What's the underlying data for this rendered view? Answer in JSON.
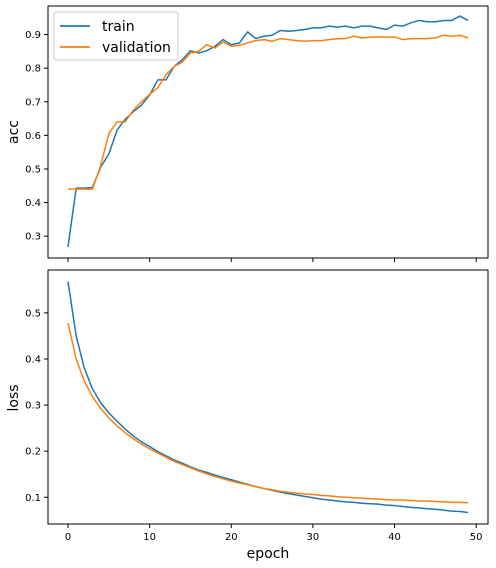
{
  "chart_data": [
    {
      "type": "line",
      "title": "",
      "xlabel": "",
      "ylabel": "acc",
      "xlim": [
        -2.45,
        51.45
      ],
      "ylim": [
        0.235,
        0.985
      ],
      "xticks": [
        0,
        10,
        20,
        30,
        40,
        50
      ],
      "yticks": [
        0.3,
        0.4,
        0.5,
        0.6,
        0.7,
        0.8,
        0.9
      ],
      "ytick_labels": [
        "0.3",
        "0.4",
        "0.5",
        "0.6",
        "0.7",
        "0.8",
        "0.9"
      ],
      "show_xtick_labels": false,
      "grid": false,
      "legend": "upper-left",
      "x": [
        0,
        1,
        2,
        3,
        4,
        5,
        6,
        7,
        8,
        9,
        10,
        11,
        12,
        13,
        14,
        15,
        16,
        17,
        18,
        19,
        20,
        21,
        22,
        23,
        24,
        25,
        26,
        27,
        28,
        29,
        30,
        31,
        32,
        33,
        34,
        35,
        36,
        37,
        38,
        39,
        40,
        41,
        42,
        43,
        44,
        45,
        46,
        47,
        48,
        49
      ],
      "series": [
        {
          "name": "train",
          "color": "#1f77b4",
          "values": [
            0.268,
            0.443,
            0.443,
            0.445,
            0.505,
            0.545,
            0.615,
            0.648,
            0.67,
            0.69,
            0.72,
            0.765,
            0.765,
            0.805,
            0.825,
            0.852,
            0.845,
            0.852,
            0.865,
            0.885,
            0.87,
            0.875,
            0.908,
            0.888,
            0.895,
            0.898,
            0.912,
            0.91,
            0.912,
            0.915,
            0.92,
            0.92,
            0.925,
            0.922,
            0.925,
            0.92,
            0.925,
            0.925,
            0.92,
            0.915,
            0.928,
            0.925,
            0.935,
            0.942,
            0.938,
            0.938,
            0.942,
            0.942,
            0.955,
            0.942
          ]
        },
        {
          "name": "validation",
          "color": "#ff7f0e",
          "values": [
            0.44,
            0.44,
            0.44,
            0.44,
            0.51,
            0.605,
            0.64,
            0.64,
            0.675,
            0.7,
            0.722,
            0.742,
            0.78,
            0.805,
            0.818,
            0.845,
            0.85,
            0.87,
            0.86,
            0.878,
            0.865,
            0.868,
            0.875,
            0.882,
            0.885,
            0.88,
            0.888,
            0.885,
            0.882,
            0.88,
            0.882,
            0.882,
            0.885,
            0.888,
            0.888,
            0.895,
            0.89,
            0.892,
            0.893,
            0.892,
            0.893,
            0.885,
            0.888,
            0.888,
            0.888,
            0.89,
            0.898,
            0.895,
            0.898,
            0.89
          ]
        }
      ]
    },
    {
      "type": "line",
      "title": "",
      "xlabel": "epoch",
      "ylabel": "loss",
      "xlim": [
        -2.45,
        51.45
      ],
      "ylim": [
        0.042,
        0.593
      ],
      "xticks": [
        0,
        10,
        20,
        30,
        40,
        50
      ],
      "xtick_labels": [
        "0",
        "10",
        "20",
        "30",
        "40",
        "50"
      ],
      "yticks": [
        0.1,
        0.2,
        0.3,
        0.4,
        0.5
      ],
      "ytick_labels": [
        "0.1",
        "0.2",
        "0.3",
        "0.4",
        "0.5"
      ],
      "show_xtick_labels": true,
      "grid": false,
      "x": [
        0,
        1,
        2,
        3,
        4,
        5,
        6,
        7,
        8,
        9,
        10,
        11,
        12,
        13,
        14,
        15,
        16,
        17,
        18,
        19,
        20,
        21,
        22,
        23,
        24,
        25,
        26,
        27,
        28,
        29,
        30,
        31,
        32,
        33,
        34,
        35,
        36,
        37,
        38,
        39,
        40,
        41,
        42,
        43,
        44,
        45,
        46,
        47,
        48,
        49
      ],
      "series": [
        {
          "name": "train",
          "color": "#1f77b4",
          "values": [
            0.568,
            0.45,
            0.38,
            0.335,
            0.305,
            0.283,
            0.265,
            0.248,
            0.233,
            0.22,
            0.21,
            0.199,
            0.19,
            0.181,
            0.174,
            0.166,
            0.159,
            0.154,
            0.148,
            0.143,
            0.138,
            0.133,
            0.128,
            0.123,
            0.119,
            0.115,
            0.111,
            0.108,
            0.105,
            0.102,
            0.099,
            0.096,
            0.094,
            0.092,
            0.09,
            0.089,
            0.087,
            0.086,
            0.085,
            0.083,
            0.082,
            0.08,
            0.078,
            0.077,
            0.075,
            0.074,
            0.072,
            0.07,
            0.069,
            0.067
          ]
        },
        {
          "name": "validation",
          "color": "#ff7f0e",
          "values": [
            0.478,
            0.4,
            0.352,
            0.318,
            0.293,
            0.272,
            0.255,
            0.24,
            0.227,
            0.215,
            0.205,
            0.196,
            0.187,
            0.178,
            0.171,
            0.164,
            0.157,
            0.151,
            0.145,
            0.14,
            0.135,
            0.131,
            0.127,
            0.123,
            0.119,
            0.116,
            0.113,
            0.111,
            0.109,
            0.107,
            0.106,
            0.104,
            0.103,
            0.101,
            0.1,
            0.099,
            0.098,
            0.097,
            0.096,
            0.095,
            0.094,
            0.094,
            0.093,
            0.092,
            0.092,
            0.091,
            0.09,
            0.089,
            0.089,
            0.088
          ]
        }
      ]
    }
  ]
}
